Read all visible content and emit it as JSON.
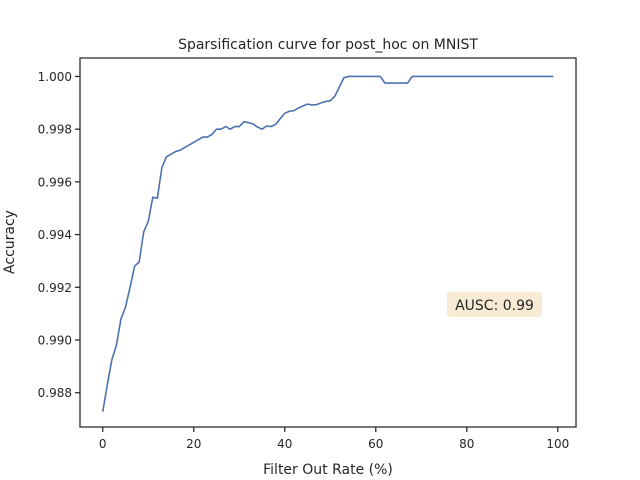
{
  "chart_data": {
    "type": "line",
    "title": "Sparsification curve for post_hoc on MNIST",
    "xlabel": "Filter Out Rate (%)",
    "ylabel": "Accuracy",
    "xlim": [
      -5,
      104
    ],
    "ylim": [
      0.9867,
      1.0007
    ],
    "xticks": [
      0,
      20,
      40,
      60,
      80,
      100
    ],
    "yticks": [
      0.988,
      0.99,
      0.992,
      0.994,
      0.996,
      0.998,
      1.0
    ],
    "xtick_labels": [
      "0",
      "20",
      "40",
      "60",
      "80",
      "100"
    ],
    "ytick_labels": [
      "0.988",
      "0.990",
      "0.992",
      "0.994",
      "0.996",
      "0.998",
      "1.000"
    ],
    "grid": false,
    "line_color": "#4c72b0",
    "annotation": {
      "text": "AUSC: 0.99",
      "box_color": "#f8ebd3",
      "placement": "right-middle"
    },
    "series": [
      {
        "x": [
          0,
          1,
          2,
          3,
          4,
          5,
          6,
          7,
          8,
          9,
          10,
          11,
          12,
          13,
          14,
          15,
          16,
          17,
          18,
          19,
          20,
          21,
          22,
          23,
          24,
          25,
          26,
          27,
          28,
          29,
          30,
          31,
          32,
          33,
          34,
          35,
          36,
          37,
          38,
          39,
          40,
          41,
          42,
          43,
          44,
          45,
          46,
          47,
          48,
          49,
          50,
          51,
          52,
          53,
          54,
          55,
          56,
          57,
          58,
          59,
          60,
          61,
          62,
          63,
          64,
          65,
          66,
          67,
          68,
          69,
          70,
          75,
          80,
          85,
          90,
          95,
          99
        ],
        "values": [
          0.98728,
          0.9883,
          0.98925,
          0.9898,
          0.9908,
          0.99125,
          0.992,
          0.9928,
          0.99296,
          0.9941,
          0.9945,
          0.99542,
          0.99538,
          0.99655,
          0.99695,
          0.99705,
          0.99715,
          0.9972,
          0.9973,
          0.9974,
          0.9975,
          0.9976,
          0.9977,
          0.9977,
          0.9978,
          0.998,
          0.998,
          0.9981,
          0.998,
          0.9981,
          0.9981,
          0.99828,
          0.99825,
          0.9982,
          0.99808,
          0.998,
          0.99812,
          0.9981,
          0.99818,
          0.9984,
          0.9986,
          0.99868,
          0.9987,
          0.9988,
          0.99888,
          0.99895,
          0.99892,
          0.99893,
          0.999,
          0.99905,
          0.99908,
          0.99925,
          0.9996,
          0.99995,
          1.0,
          1.0,
          1.0,
          1.0,
          1.0,
          1.0,
          1.0,
          1.0,
          0.99975,
          0.99975,
          0.99975,
          0.99975,
          0.99975,
          0.99975,
          1.0,
          1.0,
          1.0,
          1.0,
          1.0,
          1.0,
          1.0,
          1.0,
          1.0
        ]
      }
    ]
  }
}
